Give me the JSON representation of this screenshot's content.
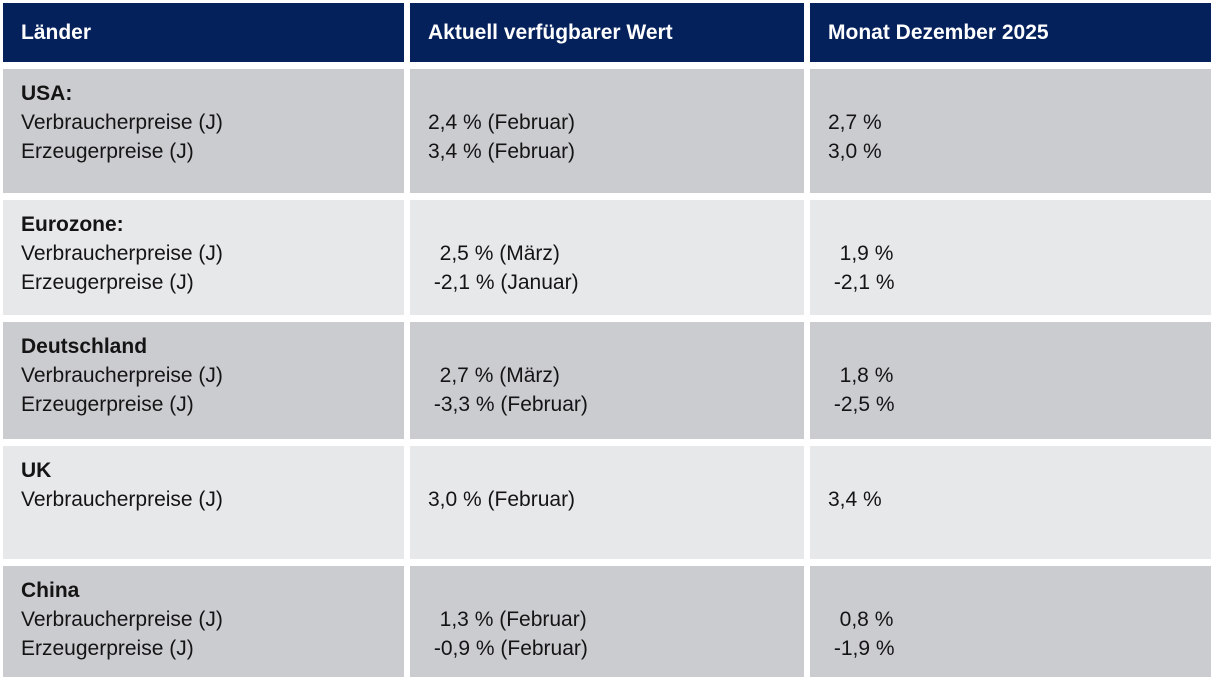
{
  "table": {
    "colors": {
      "header_bg": "#05215C",
      "header_text": "#FFFFFF",
      "row_dark_bg": "#CBCCD0",
      "row_light_bg": "#E7E8EA",
      "body_text": "#141414"
    },
    "columns": [
      {
        "label": "Länder"
      },
      {
        "label": "Aktuell verfügbarer Wert"
      },
      {
        "label": "Monat Dezember 2025"
      }
    ],
    "rows": [
      {
        "country": "USA:",
        "metrics": [
          "Verbraucherpreise (J)",
          "Erzeugerpreise (J)"
        ],
        "current": [
          "2,4 % (Februar)",
          "3,4 % (Februar)"
        ],
        "december": [
          "2,7 %",
          "3,0 %"
        ]
      },
      {
        "country": "Eurozone:",
        "metrics": [
          "Verbraucherpreise (J)",
          "Erzeugerpreise (J)"
        ],
        "current": [
          "  2,5 % (März)",
          " -2,1 % (Januar)"
        ],
        "december": [
          "  1,9 %",
          " -2,1 %"
        ]
      },
      {
        "country": "Deutschland",
        "metrics": [
          "Verbraucherpreise (J)",
          "Erzeugerpreise (J)"
        ],
        "current": [
          "  2,7 % (März)",
          " -3,3 % (Februar)"
        ],
        "december": [
          "  1,8 %",
          " -2,5 %"
        ]
      },
      {
        "country": "UK",
        "metrics": [
          "Verbraucherpreise (J)"
        ],
        "current": [
          "3,0 % (Februar)"
        ],
        "december": [
          "3,4 %"
        ]
      },
      {
        "country": "China",
        "metrics": [
          "Verbraucherpreise (J)",
          "Erzeugerpreise (J)"
        ],
        "current": [
          "  1,3 % (Februar)",
          " -0,9 % (Februar)"
        ],
        "december": [
          "  0,8 %",
          " -1,9 %"
        ]
      }
    ]
  }
}
